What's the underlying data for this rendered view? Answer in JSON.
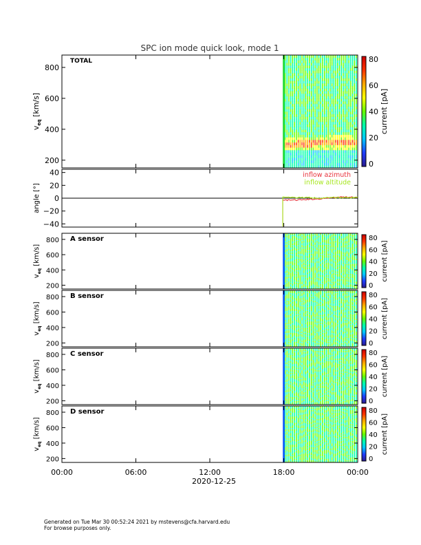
{
  "title": "SPC ion mode quick look, mode 1",
  "x_axis": {
    "ticks": [
      "00:00",
      "06:00",
      "12:00",
      "18:00",
      "00:00"
    ],
    "date_label": "2020-12-25"
  },
  "colorbar": {
    "label": "current [pA]",
    "ticks_large": [
      "0",
      "20",
      "40",
      "60",
      "80"
    ],
    "ticks_small": [
      "0",
      "20",
      "40",
      "60",
      "80"
    ],
    "colors": [
      "#2a1a8c",
      "#1f3cff",
      "#00c8ff",
      "#00ffaa",
      "#66ff00",
      "#ffff00",
      "#ffaa00",
      "#ff3300",
      "#cc0000"
    ]
  },
  "panels": {
    "total": {
      "label": "TOTAL",
      "ylabel_main": "v",
      "ylabel_sub": "eq",
      "ylabel_unit": " [km/s]",
      "yticks": [
        "200",
        "400",
        "600",
        "800"
      ]
    },
    "angle": {
      "ylabel": "angle [°]",
      "yticks": [
        "−40",
        "−20",
        "0",
        "20",
        "40"
      ],
      "legend_azimuth": "inflow azimuth",
      "legend_altitude": "inflow altitude",
      "azimuth_color": "#e8323c",
      "altitude_color": "#a6e61e"
    },
    "sensors": [
      {
        "label": "A sensor"
      },
      {
        "label": "B sensor"
      },
      {
        "label": "C sensor"
      },
      {
        "label": "D sensor"
      }
    ],
    "sensor_yticks": [
      "200",
      "400",
      "600",
      "800"
    ]
  },
  "chart_data": [
    {
      "type": "heatmap",
      "title": "SPC ion mode quick look, mode 1",
      "panel": "TOTAL",
      "xlabel": "2020-12-25",
      "x_ticks": [
        "00:00",
        "06:00",
        "12:00",
        "18:00",
        "00:00"
      ],
      "ylabel": "v_eq [km/s]",
      "ylim": [
        150,
        880
      ],
      "colorbar_label": "current [pA]",
      "zlim": [
        0,
        80
      ],
      "data_start_time": "17:55",
      "peak_velocity_km_s": 300
    },
    {
      "type": "line",
      "panel": "angle",
      "ylabel": "angle [°]",
      "ylim": [
        -45,
        45
      ],
      "series": [
        {
          "name": "inflow azimuth",
          "x": [
            "17:55",
            "19:00",
            "20:00",
            "21:00",
            "22:00",
            "23:00",
            "24:00"
          ],
          "values": [
            -3,
            -3,
            -2,
            -1,
            1,
            2,
            1
          ]
        },
        {
          "name": "inflow altitude",
          "x": [
            "17:55",
            "19:00",
            "20:00",
            "21:00",
            "22:00",
            "23:00",
            "24:00"
          ],
          "values": [
            2,
            1,
            1,
            0,
            1,
            1,
            1
          ]
        }
      ]
    },
    {
      "type": "heatmap",
      "panel": "A sensor",
      "ylabel": "v_eq [km/s]",
      "ylim": [
        150,
        880
      ],
      "zlim": [
        0,
        80
      ]
    },
    {
      "type": "heatmap",
      "panel": "B sensor",
      "ylabel": "v_eq [km/s]",
      "ylim": [
        150,
        880
      ],
      "zlim": [
        0,
        80
      ]
    },
    {
      "type": "heatmap",
      "panel": "C sensor",
      "ylabel": "v_eq [km/s]",
      "ylim": [
        150,
        880
      ],
      "zlim": [
        0,
        80
      ]
    },
    {
      "type": "heatmap",
      "panel": "D sensor",
      "ylabel": "v_eq [km/s]",
      "ylim": [
        150,
        880
      ],
      "zlim": [
        0,
        80
      ]
    }
  ],
  "footer": {
    "line1": "Generated on Tue Mar 30 00:52:24 2021 by mstevens@cfa.harvard.edu",
    "line2": "For browse purposes only."
  }
}
